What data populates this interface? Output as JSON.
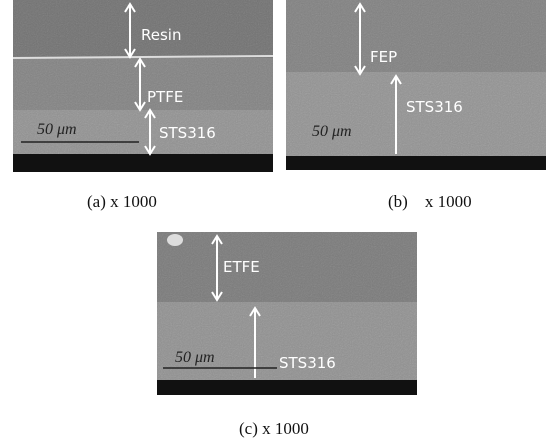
{
  "panels": [
    {
      "labels": [
        "Resin",
        "PTFE",
        "STS316"
      ],
      "scale": "50 μm",
      "caption": "(a) x 1000"
    },
    {
      "labels": [
        "FEP",
        "STS316"
      ],
      "scale": "50 μm",
      "caption": "(b)    x 1000"
    },
    {
      "labels": [
        "ETFE",
        "STS316"
      ],
      "scale": "50 μm",
      "caption": "(c) x 1000"
    }
  ]
}
